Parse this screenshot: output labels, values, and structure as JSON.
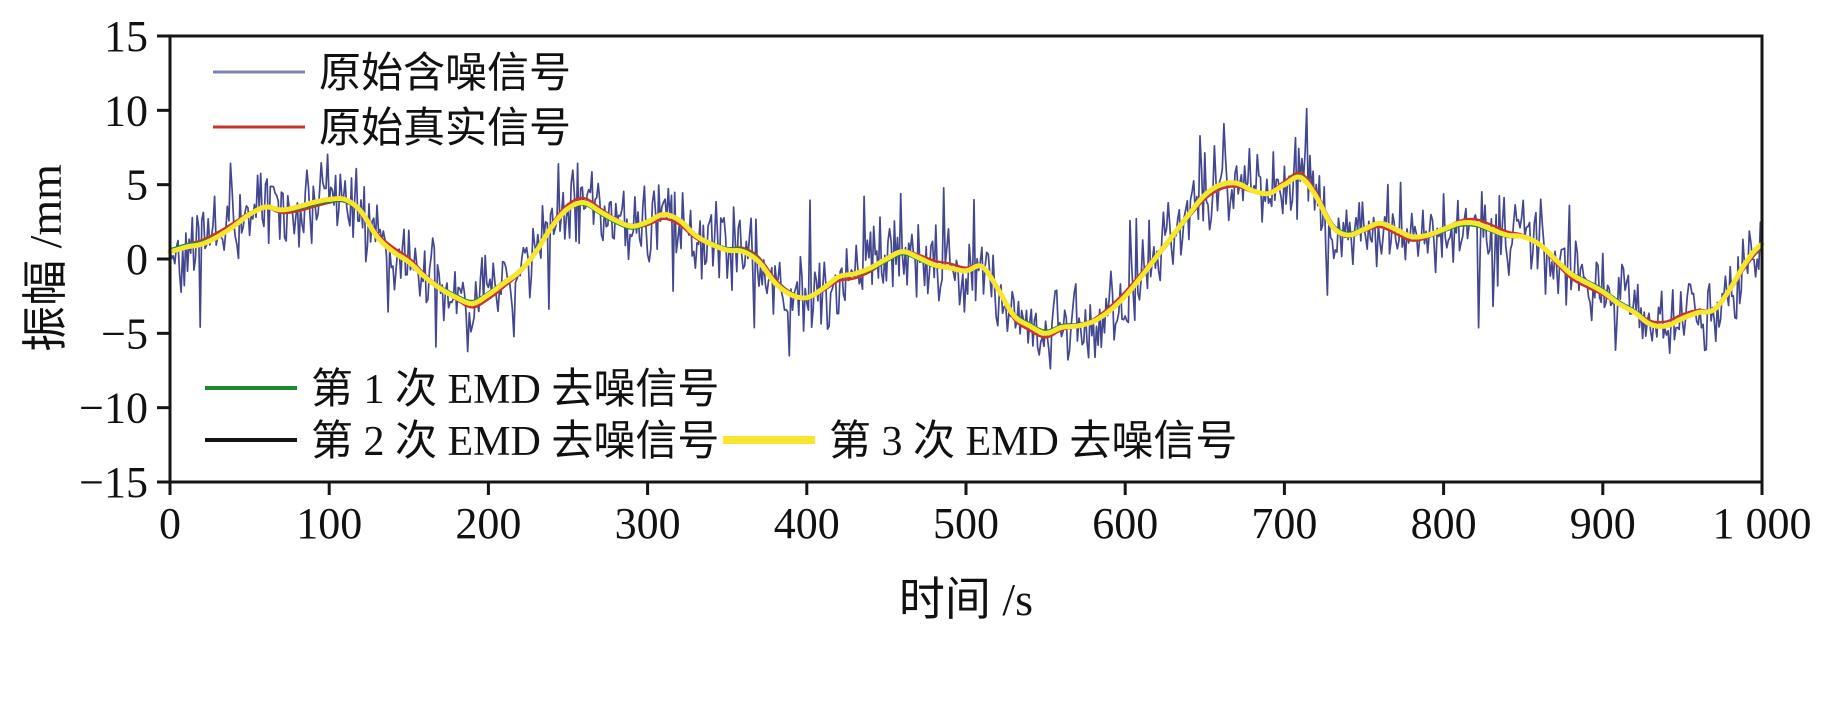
{
  "chart_data": {
    "type": "line",
    "title": "",
    "xlabel": "时间 /s",
    "ylabel": "振幅 /mm",
    "xlim": [
      0,
      1000
    ],
    "ylim": [
      -15,
      15
    ],
    "grid": false,
    "x_ticks": [
      0,
      100,
      200,
      300,
      400,
      500,
      600,
      700,
      800,
      900,
      1000
    ],
    "x_tick_labels": [
      "0",
      "100",
      "200",
      "300",
      "400",
      "500",
      "600",
      "700",
      "800",
      "900",
      "1 000"
    ],
    "y_ticks": [
      -15,
      -10,
      -5,
      0,
      5,
      10,
      15
    ],
    "y_tick_labels": [
      "−15",
      "−10",
      "−5",
      "0",
      "5",
      "10",
      "15"
    ],
    "legend": [
      {
        "label": "原始含噪信号",
        "color": "#7b84b5",
        "swatch_width": 3
      },
      {
        "label": "原始真实信号",
        "color": "#c8342e",
        "swatch_width": 3
      },
      {
        "label": "第 1 次 EMD 去噪信号",
        "color": "#1d8a33",
        "swatch_width": 4
      },
      {
        "label": "第 2 次 EMD 去噪信号",
        "color": "#141414",
        "swatch_width": 4
      },
      {
        "label": "第 3 次 EMD 去噪信号",
        "color": "#f6e62e",
        "swatch_width": 8
      }
    ],
    "legend_position": {
      "noisy_true": "upper-left-inside",
      "emd": "lower-left-inside"
    },
    "base_signal": {
      "x_step": 10,
      "values": [
        0.5,
        0.8,
        1.0,
        1.5,
        2.2,
        3.0,
        3.5,
        3.3,
        3.5,
        3.8,
        4.0,
        4.0,
        3.2,
        1.5,
        0.5,
        -0.2,
        -1.2,
        -2.0,
        -2.6,
        -3.0,
        -2.4,
        -1.6,
        -0.8,
        0.5,
        2.2,
        3.4,
        3.8,
        3.2,
        2.6,
        2.2,
        2.5,
        3.0,
        2.6,
        1.6,
        1.0,
        0.6,
        0.5,
        -0.2,
        -1.6,
        -2.4,
        -2.6,
        -2.0,
        -1.2,
        -1.0,
        -0.6,
        0.0,
        0.5,
        0.1,
        -0.4,
        -0.6,
        -0.8,
        -0.5,
        -2.0,
        -3.8,
        -4.5,
        -5.0,
        -4.6,
        -4.5,
        -4.2,
        -3.5,
        -2.5,
        -1.2,
        0.2,
        1.6,
        3.0,
        4.3,
        5.0,
        5.1,
        4.6,
        4.4,
        5.0,
        5.5,
        4.2,
        2.2,
        1.6,
        2.0,
        2.4,
        2.0,
        1.5,
        1.6,
        2.0,
        2.4,
        2.4,
        2.0,
        1.6,
        1.5,
        1.0,
        0.0,
        -1.0,
        -1.6,
        -2.2,
        -3.0,
        -3.6,
        -4.4,
        -4.5,
        -4.0,
        -3.6,
        -3.4,
        -2.0,
        -0.2,
        1.0
      ]
    },
    "series": [
      {
        "name": "原始含噪信号",
        "role": "noisy",
        "color": "#43478f",
        "width": 1.7,
        "noise_amplitude": 3.2,
        "spike_probability": 0.05,
        "spike_extra": 3.2,
        "sample_step": 1,
        "seed": 42
      },
      {
        "name": "原始真实信号",
        "role": "smooth",
        "color": "#c8342e",
        "width": 2.4,
        "wiggle_amp": 0.3,
        "wiggle_freq": 0.055,
        "phase": 0.0
      },
      {
        "name": "第 1 次 EMD 去噪信号",
        "role": "smooth",
        "color": "#1d8a33",
        "width": 2.2,
        "wiggle_amp": 0.18,
        "wiggle_freq": 0.035,
        "phase": 1.3
      },
      {
        "name": "第 2 次 EMD 去噪信号",
        "role": "smooth",
        "color": "#141414",
        "width": 2.0,
        "wiggle_amp": 0.12,
        "wiggle_freq": 0.02,
        "phase": 2.6
      },
      {
        "name": "第 3 次 EMD 去噪信号",
        "role": "smooth",
        "color": "#f6e62e",
        "width": 5.0,
        "wiggle_amp": 0.0,
        "wiggle_freq": 0.0,
        "phase": 0.0
      }
    ]
  }
}
